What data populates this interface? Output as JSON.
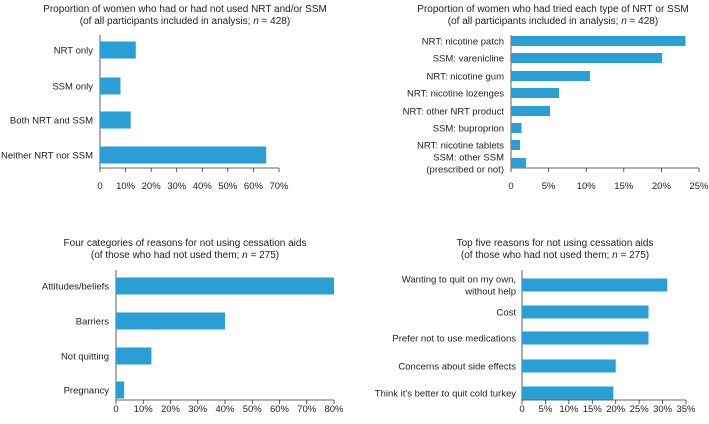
{
  "chart_data": [
    {
      "type": "bar",
      "orientation": "horizontal",
      "title_line1": "Proportion of women who had or had not used NRT and/or SSM",
      "title_line2": "(of all participants included in analysis; n = 428)",
      "categories": [
        "NRT only",
        "SSM only",
        "Both NRT and SSM",
        "Neither NRT nor SSM"
      ],
      "values": [
        14,
        8,
        12,
        65
      ],
      "xlim": [
        0,
        70
      ],
      "ticks": [
        0,
        10,
        20,
        30,
        40,
        50,
        60,
        70
      ],
      "tick_labels": [
        "0",
        "10%",
        "20%",
        "30%",
        "40%",
        "50%",
        "60%",
        "70%"
      ],
      "color": "#2a9fd6"
    },
    {
      "type": "bar",
      "orientation": "horizontal",
      "title_line1": "Proportion of women who had tried each type of NRT or SSM",
      "title_line2": "(of all participants included in analysis; n = 428)",
      "categories": [
        "NRT: nicotine patch",
        "SSM: varenicline",
        "NRT: nicotine gum",
        "NRT: nicotine lozenges",
        "NRT: other NRT product",
        "SSM: buproprion",
        "NRT: nicotine tablets",
        "SSM: other SSM|(prescribed or not)"
      ],
      "values": [
        23.2,
        20.1,
        10.5,
        6.4,
        5.2,
        1.4,
        1.2,
        2.0
      ],
      "xlim": [
        0,
        25
      ],
      "ticks": [
        0,
        5,
        10,
        15,
        20,
        25
      ],
      "tick_labels": [
        "0",
        "5%",
        "10%",
        "15%",
        "20%",
        "25%"
      ],
      "color": "#2a9fd6"
    },
    {
      "type": "bar",
      "orientation": "horizontal",
      "title_line1": "Four categories of reasons for not using cessation aids",
      "title_line2": "(of those who had not used them; n = 275)",
      "categories": [
        "Attitudes/beliefs",
        "Barriers",
        "Not quitting",
        "Pregnancy"
      ],
      "values": [
        80,
        40,
        13,
        3
      ],
      "xlim": [
        0,
        80
      ],
      "ticks": [
        0,
        10,
        20,
        30,
        40,
        50,
        60,
        70,
        80
      ],
      "tick_labels": [
        "0",
        "10%",
        "20%",
        "30%",
        "40%",
        "50%",
        "60%",
        "70%",
        "80%"
      ],
      "color": "#2a9fd6"
    },
    {
      "type": "bar",
      "orientation": "horizontal",
      "title_line1": "Top five reasons for not using cessation aids",
      "title_line2": "(of those who had not used them; n = 275)",
      "categories": [
        "Wanting to quit on my own,|without help",
        "Cost",
        "Prefer not to use medications",
        "Concerns about side effects",
        "Think it's better to quit cold turkey"
      ],
      "values": [
        31,
        27,
        27,
        20,
        19.5
      ],
      "xlim": [
        0,
        35
      ],
      "ticks": [
        0,
        5,
        10,
        15,
        20,
        25,
        30,
        35
      ],
      "tick_labels": [
        "0",
        "5%",
        "10%",
        "15%",
        "20%",
        "25%",
        "30%",
        "35%"
      ],
      "color": "#2a9fd6"
    }
  ]
}
